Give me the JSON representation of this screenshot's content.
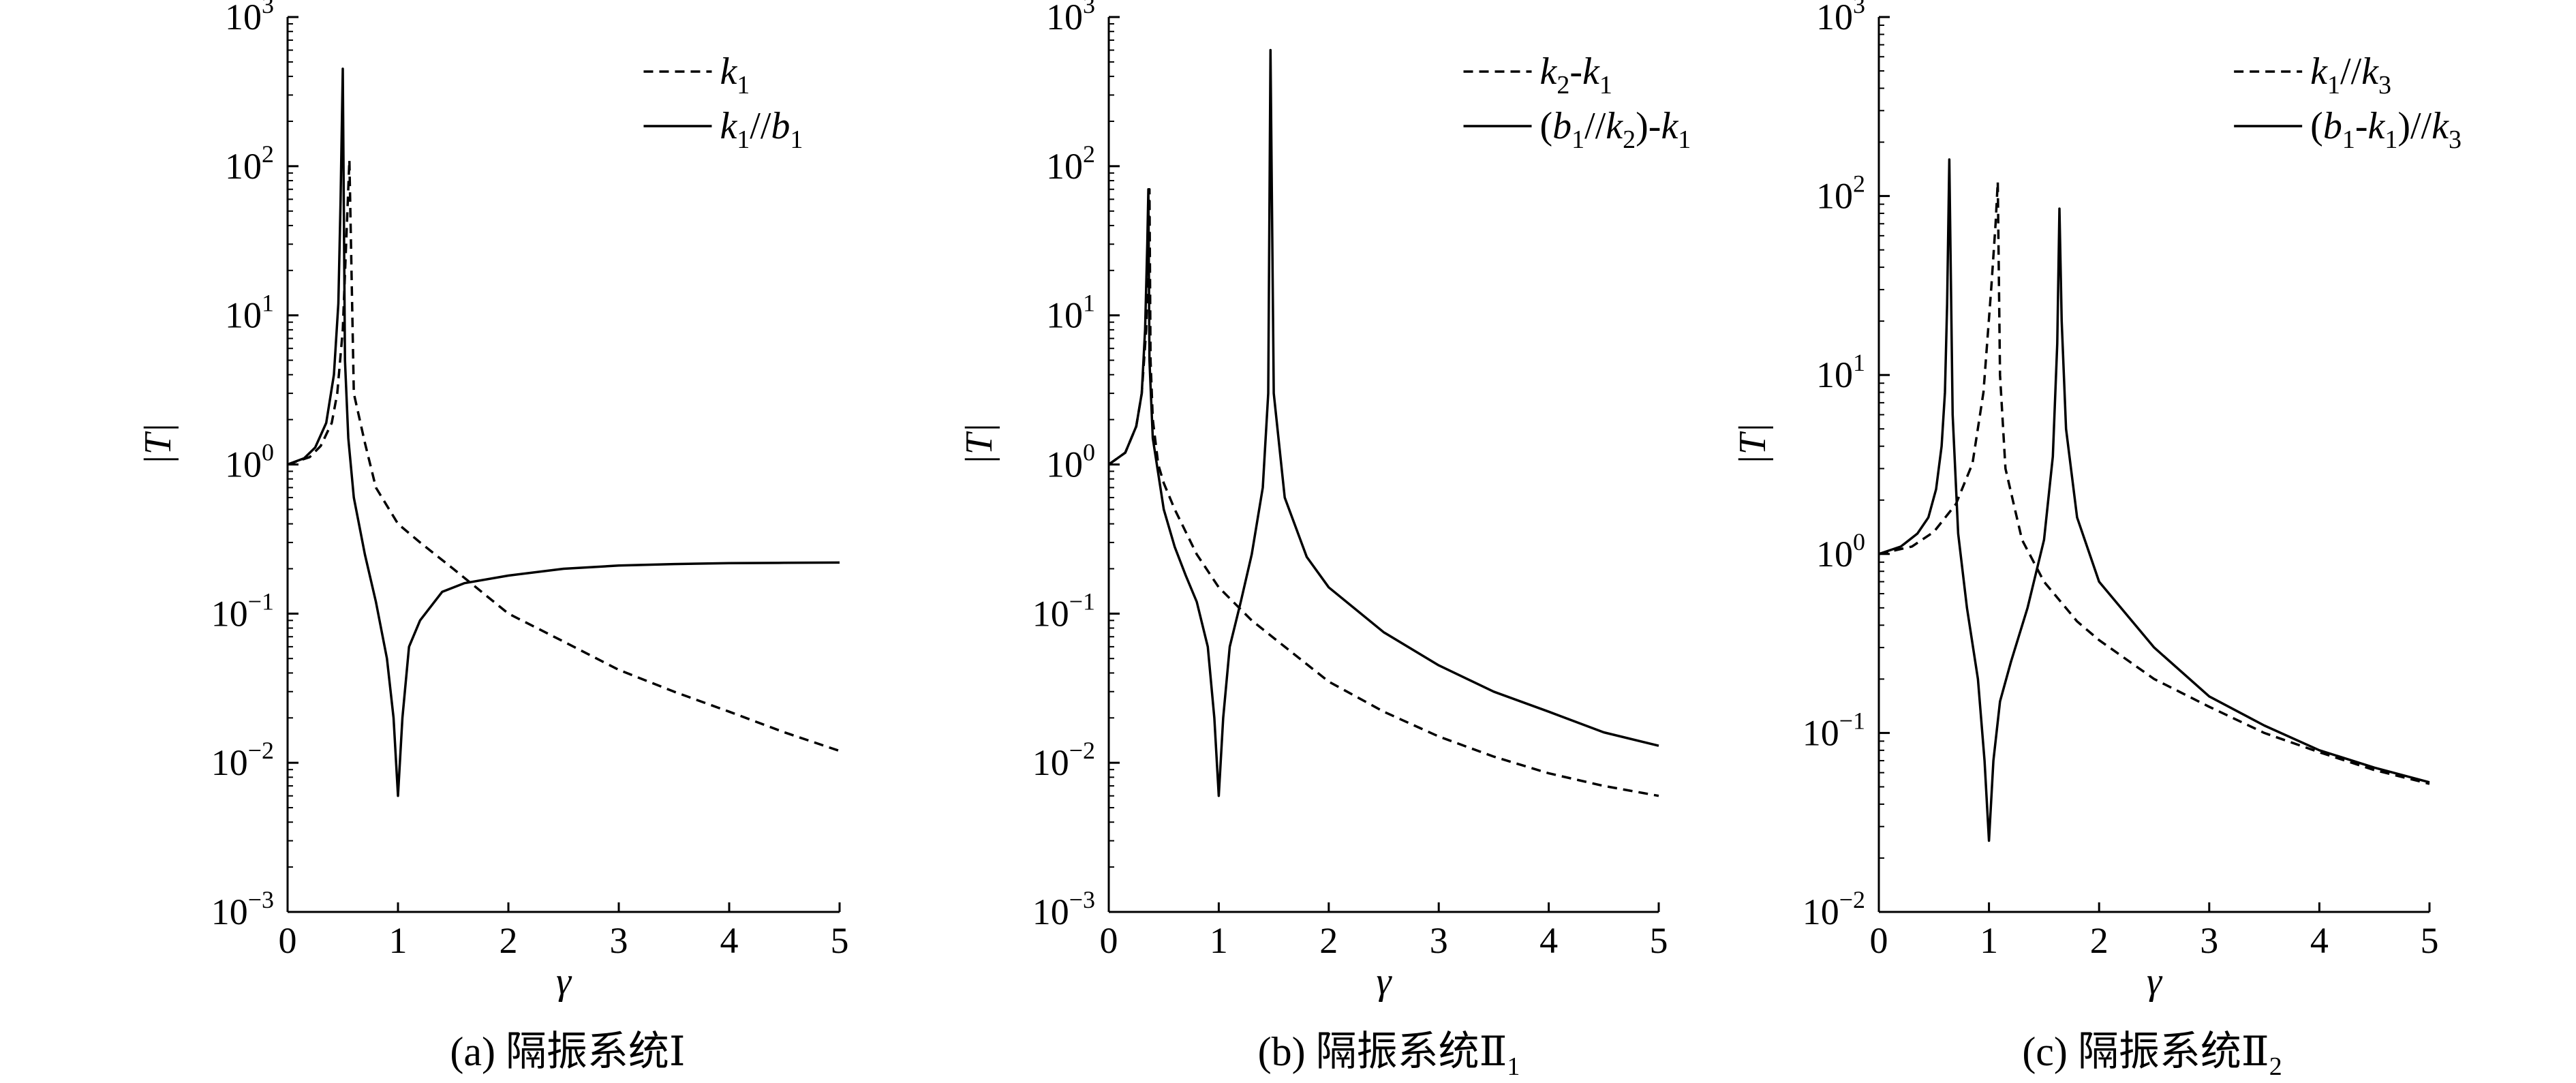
{
  "chart_data": [
    {
      "type": "line",
      "caption": "(a) 隔振系统Ⅰ",
      "xlabel": "γ",
      "ylabel": "|T|",
      "xlim": [
        0,
        5
      ],
      "ylim": [
        0.001,
        1000
      ],
      "yscale": "log",
      "xticks": [
        0,
        1,
        2,
        3,
        4,
        5
      ],
      "yticks": [
        {
          "base": "10",
          "exp": "−3",
          "value": 0.001
        },
        {
          "base": "10",
          "exp": "−2",
          "value": 0.01
        },
        {
          "base": "10",
          "exp": "−1",
          "value": 0.1
        },
        {
          "base": "10",
          "exp": "0",
          "value": 1
        },
        {
          "base": "10",
          "exp": "1",
          "value": 10
        },
        {
          "base": "10",
          "exp": "2",
          "value": 100
        },
        {
          "base": "10",
          "exp": "3",
          "value": 1000
        }
      ],
      "legend_position": "top-right",
      "series": [
        {
          "name": "k1",
          "legend": [
            {
              "t": "k",
              "s": "1"
            }
          ],
          "style": "dashed",
          "x": [
            0,
            0.2,
            0.3,
            0.4,
            0.45,
            0.5,
            0.53,
            0.56,
            0.6,
            0.7,
            0.8,
            1.0,
            1.2,
            1.5,
            2.0,
            2.5,
            3.0,
            3.5,
            4.0,
            4.5,
            5.0
          ],
          "y": [
            1.0,
            1.12,
            1.33,
            1.9,
            3.0,
            8.0,
            30,
            110,
            3.0,
            1.4,
            0.7,
            0.4,
            0.3,
            0.2,
            0.1,
            0.065,
            0.042,
            0.03,
            0.022,
            0.016,
            0.012
          ]
        },
        {
          "name": "k1//b1",
          "legend": [
            {
              "t": "k",
              "s": "1"
            },
            {
              "t": "//",
              "plain": true
            },
            {
              "t": "b",
              "s": "1"
            }
          ],
          "style": "solid",
          "x": [
            0,
            0.15,
            0.25,
            0.35,
            0.42,
            0.46,
            0.48,
            0.5,
            0.52,
            0.55,
            0.6,
            0.7,
            0.8,
            0.9,
            0.96,
            1.0,
            1.04,
            1.1,
            1.2,
            1.4,
            1.6,
            2.0,
            2.5,
            3.0,
            3.5,
            4.0,
            4.5,
            5.0
          ],
          "y": [
            1.0,
            1.1,
            1.3,
            1.9,
            4.0,
            12,
            60,
            450,
            5.0,
            1.5,
            0.6,
            0.25,
            0.12,
            0.05,
            0.02,
            0.006,
            0.02,
            0.06,
            0.09,
            0.14,
            0.16,
            0.18,
            0.2,
            0.21,
            0.215,
            0.218,
            0.219,
            0.22
          ]
        }
      ]
    },
    {
      "type": "line",
      "caption": "(b) 隔振系统Ⅱ",
      "caption_sub": "1",
      "xlabel": "γ",
      "ylabel": "|T|",
      "xlim": [
        0,
        5
      ],
      "ylim": [
        0.001,
        1000
      ],
      "yscale": "log",
      "xticks": [
        0,
        1,
        2,
        3,
        4,
        5
      ],
      "yticks": [
        {
          "base": "10",
          "exp": "−3",
          "value": 0.001
        },
        {
          "base": "10",
          "exp": "−2",
          "value": 0.01
        },
        {
          "base": "10",
          "exp": "−1",
          "value": 0.1
        },
        {
          "base": "10",
          "exp": "0",
          "value": 1
        },
        {
          "base": "10",
          "exp": "1",
          "value": 10
        },
        {
          "base": "10",
          "exp": "2",
          "value": 100
        },
        {
          "base": "10",
          "exp": "3",
          "value": 1000
        }
      ],
      "legend_position": "top-right",
      "series": [
        {
          "name": "k2-k1",
          "legend": [
            {
              "t": "k",
              "s": "2"
            },
            {
              "t": "-",
              "plain": true
            },
            {
              "t": "k",
              "s": "1"
            }
          ],
          "style": "dashed",
          "x": [
            0,
            0.15,
            0.25,
            0.3,
            0.34,
            0.36,
            0.37,
            0.38,
            0.4,
            0.45,
            0.5,
            0.6,
            0.8,
            1.0,
            1.3,
            1.6,
            2.0,
            2.5,
            3.0,
            3.5,
            4.0,
            4.5,
            5.0
          ],
          "y": [
            1.0,
            1.2,
            1.8,
            3.0,
            8.0,
            30,
            70,
            5.0,
            2.0,
            1.0,
            0.75,
            0.5,
            0.25,
            0.15,
            0.09,
            0.06,
            0.035,
            0.022,
            0.015,
            0.011,
            0.0085,
            0.007,
            0.006
          ]
        },
        {
          "name": "(b1//k2)-k1",
          "legend": [
            {
              "t": "(",
              "plain": true
            },
            {
              "t": "b",
              "s": "1"
            },
            {
              "t": "//",
              "plain": true
            },
            {
              "t": "k",
              "s": "2"
            },
            {
              "t": ")-",
              "plain": true
            },
            {
              "t": "k",
              "s": "1"
            }
          ],
          "style": "solid",
          "x": [
            0,
            0.15,
            0.25,
            0.3,
            0.33,
            0.35,
            0.36,
            0.37,
            0.4,
            0.5,
            0.6,
            0.7,
            0.8,
            0.9,
            0.96,
            1.0,
            1.04,
            1.1,
            1.2,
            1.3,
            1.4,
            1.45,
            1.47,
            1.5,
            1.6,
            1.8,
            2.0,
            2.5,
            3.0,
            3.5,
            4.0,
            4.5,
            5.0
          ],
          "y": [
            1.0,
            1.2,
            1.8,
            3.0,
            8.0,
            30,
            70,
            5.0,
            1.5,
            0.5,
            0.28,
            0.18,
            0.12,
            0.06,
            0.02,
            0.006,
            0.02,
            0.06,
            0.12,
            0.25,
            0.7,
            3.0,
            600,
            3.0,
            0.6,
            0.24,
            0.15,
            0.075,
            0.045,
            0.03,
            0.022,
            0.016,
            0.013
          ]
        }
      ]
    },
    {
      "type": "line",
      "caption": "(c) 隔振系统Ⅱ",
      "caption_sub": "2",
      "xlabel": "γ",
      "ylabel": "|T|",
      "xlim": [
        0,
        5
      ],
      "ylim": [
        0.01,
        1000
      ],
      "yscale": "log",
      "xticks": [
        0,
        1,
        2,
        3,
        4,
        5
      ],
      "yticks": [
        {
          "base": "10",
          "exp": "−2",
          "value": 0.01
        },
        {
          "base": "10",
          "exp": "−1",
          "value": 0.1
        },
        {
          "base": "10",
          "exp": "0",
          "value": 1
        },
        {
          "base": "10",
          "exp": "1",
          "value": 10
        },
        {
          "base": "10",
          "exp": "2",
          "value": 100
        },
        {
          "base": "10",
          "exp": "3",
          "value": 1000
        }
      ],
      "legend_position": "top-right",
      "series": [
        {
          "name": "k1//k3",
          "legend": [
            {
              "t": "k",
              "s": "1"
            },
            {
              "t": "//",
              "plain": true
            },
            {
              "t": "k",
              "s": "3"
            }
          ],
          "style": "dashed",
          "x": [
            0,
            0.3,
            0.5,
            0.7,
            0.85,
            0.95,
            1.02,
            1.06,
            1.08,
            1.1,
            1.15,
            1.3,
            1.5,
            1.8,
            2.0,
            2.5,
            3.0,
            3.5,
            4.0,
            4.5,
            5.0
          ],
          "y": [
            1.0,
            1.1,
            1.33,
            1.9,
            3.2,
            8.0,
            30,
            70,
            120,
            10,
            3.0,
            1.2,
            0.7,
            0.42,
            0.33,
            0.2,
            0.14,
            0.1,
            0.078,
            0.062,
            0.052
          ]
        },
        {
          "name": "(b1-k1)//k3",
          "legend": [
            {
              "t": "(",
              "plain": true
            },
            {
              "t": "b",
              "s": "1"
            },
            {
              "t": "-",
              "plain": true
            },
            {
              "t": "k",
              "s": "1"
            },
            {
              "t": ")//",
              "plain": true
            },
            {
              "t": "k",
              "s": "3"
            }
          ],
          "style": "solid",
          "x": [
            0,
            0.2,
            0.35,
            0.45,
            0.52,
            0.57,
            0.6,
            0.62,
            0.64,
            0.67,
            0.72,
            0.8,
            0.9,
            0.96,
            1.0,
            1.04,
            1.1,
            1.2,
            1.35,
            1.5,
            1.58,
            1.62,
            1.64,
            1.66,
            1.7,
            1.8,
            2.0,
            2.5,
            3.0,
            3.5,
            4.0,
            4.5,
            5.0
          ],
          "y": [
            1.0,
            1.1,
            1.3,
            1.6,
            2.3,
            4.0,
            8.0,
            25,
            160,
            6.0,
            1.3,
            0.5,
            0.2,
            0.07,
            0.025,
            0.07,
            0.15,
            0.25,
            0.5,
            1.2,
            3.5,
            15,
            85,
            20,
            5.0,
            1.6,
            0.7,
            0.3,
            0.16,
            0.11,
            0.08,
            0.064,
            0.053
          ]
        }
      ]
    }
  ]
}
